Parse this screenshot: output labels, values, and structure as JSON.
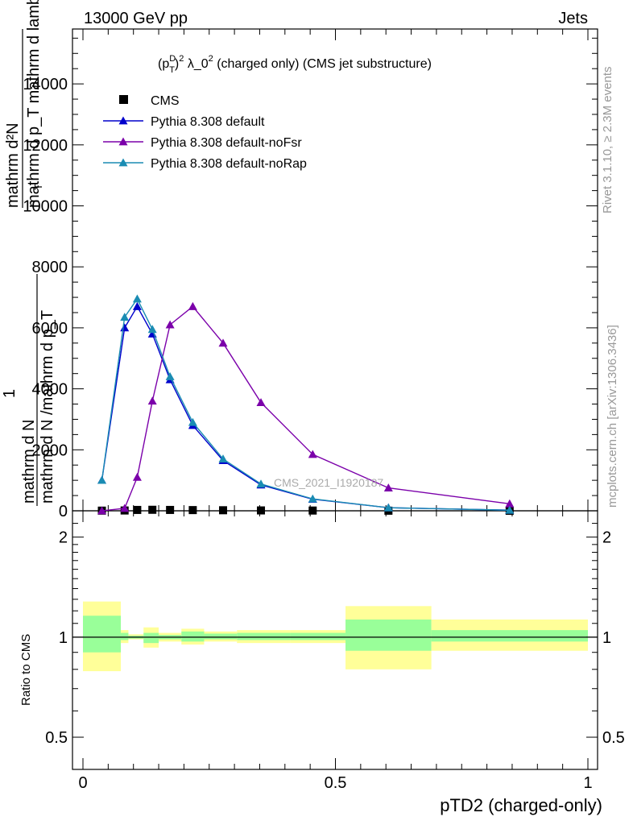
{
  "header": {
    "left": "13000 GeV pp",
    "right": "Jets"
  },
  "side_labels": {
    "rivet": "Rivet 3.1.10, ≥ 2.3M events",
    "mcplots": "mcplots.cern.ch [arXiv:1306.3436]"
  },
  "watermark": "CMS_2021_I1920187",
  "chart_data": {
    "type": "line",
    "title": "(p_T^D)^2 λ_0^2 (charged only) (CMS jet substructure)",
    "title_parts": {
      "main": "(p",
      "sup_d": "D",
      "sub_t": "T",
      "close": ")",
      "sup_2a": "2",
      "lambda": " λ_0",
      "sup_2b": "2",
      "rest": " (charged only) (CMS jet substructure)"
    },
    "xlabel": "pTD2 (charged-only)",
    "ylabel_top": {
      "one": "1",
      "frac_num": "mathrm d N",
      "frac_den": "mathrm d N /mathrm d p_T",
      "num": "mathrm d²N",
      "den": "mathrm d p_T mathrm d lambda",
      "sub_t": "T"
    },
    "ratio_ylabel": "Ratio to CMS",
    "xlim": [
      0,
      1
    ],
    "ylim": [
      0,
      15800
    ],
    "ratio_ylim": [
      0.4,
      2.4
    ],
    "x_ticks": [
      "0",
      "0.5",
      "1"
    ],
    "y_ticks": [
      "0",
      "2000",
      "4000",
      "6000",
      "8000",
      "10000",
      "12000",
      "14000"
    ],
    "ratio_ticks": [
      "0.5",
      "1",
      "2"
    ],
    "legend_position": "top-left",
    "series": [
      {
        "name": "CMS",
        "marker": "square",
        "color": "#000000",
        "x": [
          0.0375,
          0.0825,
          0.1075,
          0.1375,
          0.1725,
          0.2175,
          0.2775,
          0.3525,
          0.455,
          0.605,
          0.845
        ],
        "y": [
          5,
          10,
          28,
          33,
          28,
          23,
          18,
          12,
          8,
          3,
          1
        ]
      },
      {
        "name": "Pythia 8.308 default",
        "marker": "triangle",
        "color": "#0000cc",
        "x": [
          0.0375,
          0.0825,
          0.1075,
          0.1375,
          0.1725,
          0.2175,
          0.2775,
          0.3525,
          0.455,
          0.605,
          0.845
        ],
        "y": [
          1000,
          6000,
          6700,
          5800,
          4300,
          2800,
          1650,
          850,
          380,
          100,
          20
        ]
      },
      {
        "name": "Pythia 8.308 default-noFsr",
        "marker": "triangle",
        "color": "#7b00aa",
        "x": [
          0.0375,
          0.0825,
          0.1075,
          0.1375,
          0.1725,
          0.2175,
          0.2775,
          0.3525,
          0.455,
          0.605,
          0.845
        ],
        "y": [
          0,
          80,
          1100,
          3600,
          6100,
          6700,
          5500,
          3550,
          1850,
          750,
          230
        ]
      },
      {
        "name": "Pythia 8.308 default-noRap",
        "marker": "triangle",
        "color": "#1a8cb3",
        "x": [
          0.0375,
          0.0825,
          0.1075,
          0.1375,
          0.1725,
          0.2175,
          0.2775,
          0.3525,
          0.455,
          0.605,
          0.845
        ],
        "y": [
          1000,
          6350,
          6950,
          5950,
          4400,
          2900,
          1700,
          880,
          390,
          100,
          20
        ]
      }
    ],
    "ratio_bands": [
      {
        "x": [
          0.0,
          0.075
        ],
        "inner": [
          0.9,
          1.16
        ],
        "outer": [
          0.79,
          1.28
        ]
      },
      {
        "x": [
          0.075,
          0.09
        ],
        "inner": [
          0.98,
          1.03
        ],
        "outer": [
          0.96,
          1.05
        ]
      },
      {
        "x": [
          0.09,
          0.12
        ],
        "inner": [
          0.99,
          1.01
        ],
        "outer": [
          0.985,
          1.02
        ]
      },
      {
        "x": [
          0.12,
          0.15
        ],
        "inner": [
          0.96,
          1.03
        ],
        "outer": [
          0.93,
          1.07
        ]
      },
      {
        "x": [
          0.15,
          0.195
        ],
        "inner": [
          0.985,
          1.015
        ],
        "outer": [
          0.97,
          1.03
        ]
      },
      {
        "x": [
          0.195,
          0.24
        ],
        "inner": [
          0.97,
          1.04
        ],
        "outer": [
          0.95,
          1.06
        ]
      },
      {
        "x": [
          0.24,
          0.305
        ],
        "inner": [
          0.985,
          1.025
        ],
        "outer": [
          0.97,
          1.04
        ]
      },
      {
        "x": [
          0.305,
          0.41
        ],
        "inner": [
          0.98,
          1.03
        ],
        "outer": [
          0.96,
          1.05
        ]
      },
      {
        "x": [
          0.41,
          0.52
        ],
        "inner": [
          0.98,
          1.03
        ],
        "outer": [
          0.96,
          1.05
        ]
      },
      {
        "x": [
          0.52,
          0.69
        ],
        "inner": [
          0.91,
          1.13
        ],
        "outer": [
          0.8,
          1.24
        ]
      },
      {
        "x": [
          0.69,
          1.0
        ],
        "inner": [
          0.97,
          1.05
        ],
        "outer": [
          0.91,
          1.13
        ]
      }
    ]
  }
}
